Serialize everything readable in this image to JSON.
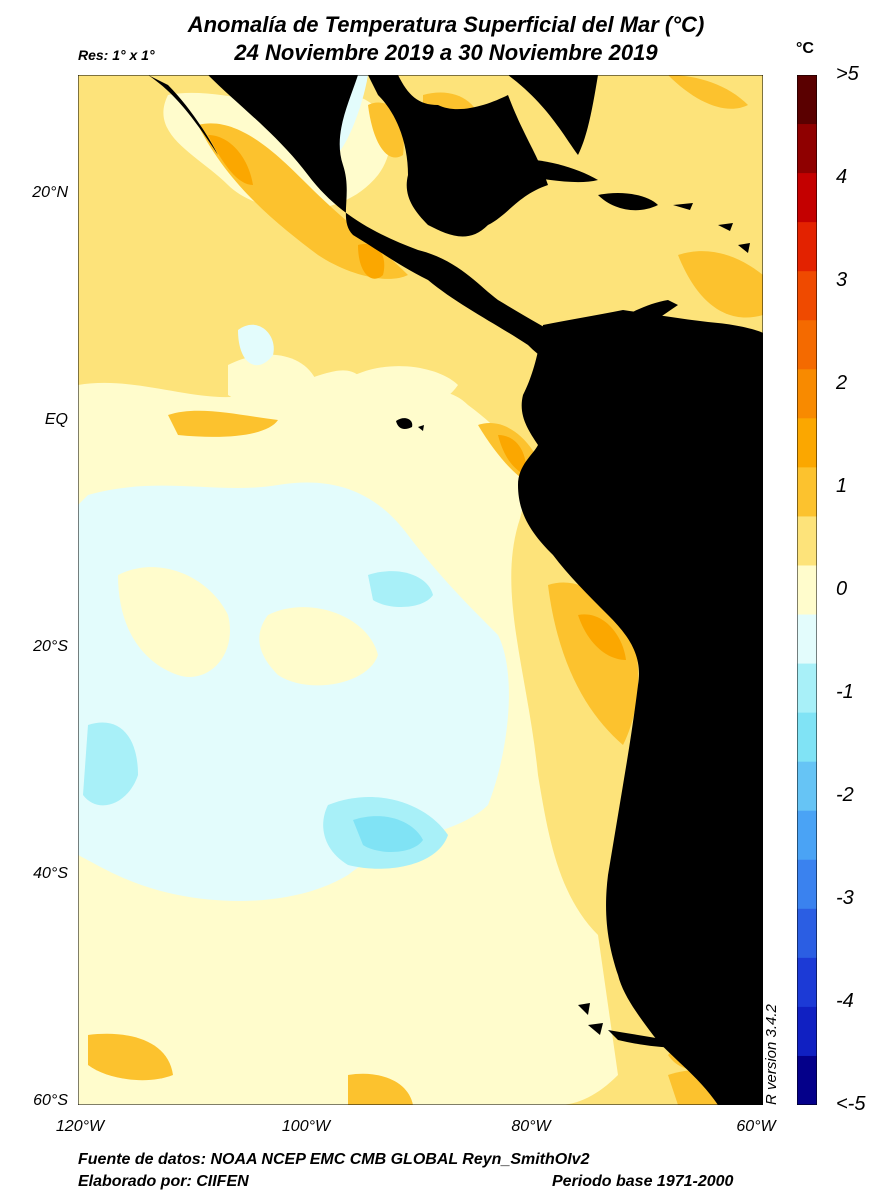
{
  "title_line1": "Anomalía de Temperatura Superficial del Mar (°C)",
  "title_line2": "24 Noviembre 2019 a 30 Noviembre 2019",
  "resolution": "Res: 1° x 1°",
  "unit": "°C",
  "y_ticks": [
    "20°N",
    "EQ",
    "20°S",
    "40°S",
    "60°S"
  ],
  "x_ticks": [
    "120°W",
    "100°W",
    "80°W",
    "60°W"
  ],
  "colorbar_labels": [
    ">5",
    "4",
    "3",
    "2",
    "1",
    "0",
    "-1",
    "-2",
    "-3",
    "-4",
    "<-5"
  ],
  "colorbar_colors": [
    "#5a0000",
    "#8f0000",
    "#c40000",
    "#e32200",
    "#ef4a00",
    "#f46a00",
    "#f88a00",
    "#fba700",
    "#fcc22e",
    "#fde37a",
    "#fffccc",
    "#e3fcfc",
    "#a8f0f8",
    "#80e3f5",
    "#66c4f5",
    "#4aa3f5",
    "#3a82ef",
    "#2b5ee3",
    "#1c3ad6",
    "#1020c2",
    "#04008a"
  ],
  "r_version": "R version 3.4.2",
  "footer_source": "Fuente de datos: NOAA NCEP EMC CMB GLOBAL Reyn_SmithOIv2",
  "footer_author": "Elaborado por: CIIFEN",
  "footer_base": "Periodo base 1971-2000",
  "colors": {
    "land": "#000000",
    "ocean_neutral": "#fffccc",
    "warm_light": "#fde37a",
    "warm": "#fcc22e",
    "warm_strong": "#fba700",
    "cool_light": "#e3fcfc",
    "cool": "#a8f0f8",
    "cool_strong": "#80e3f5"
  }
}
